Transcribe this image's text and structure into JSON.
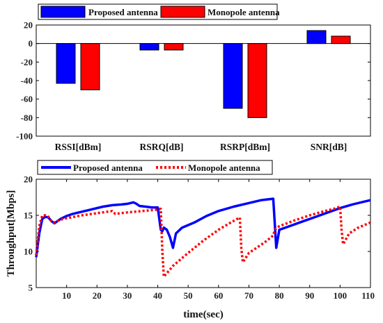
{
  "chart_data": [
    {
      "type": "bar",
      "title": "",
      "xlabel": "",
      "ylabel": "",
      "categories": [
        "RSSI[dBm]",
        "RSRQ[dB]",
        "RSRP[dBm]",
        "SNR[dB]"
      ],
      "series": [
        {
          "name": "Proposed antenna",
          "color": "#0000ff",
          "values": [
            -43,
            -7,
            -70,
            14
          ]
        },
        {
          "name": "Monopole antenna",
          "color": "#ff0000",
          "values": [
            -50,
            -7,
            -80,
            8
          ]
        }
      ],
      "ylim": [
        -100,
        20
      ],
      "yticks": [
        "20",
        "0",
        "-20",
        "-40",
        "-60",
        "-80",
        "-100"
      ],
      "legend": "top-left",
      "grid": false
    },
    {
      "type": "line",
      "title": "",
      "xlabel": "time(sec)",
      "ylabel": "Throughput[Mbps]",
      "xlim": [
        0,
        110
      ],
      "ylim": [
        5,
        20
      ],
      "xticks": [
        "10",
        "20",
        "30",
        "40",
        "50",
        "60",
        "70",
        "80",
        "90",
        "100",
        "110"
      ],
      "yticks": [
        "5",
        "10",
        "15",
        "20"
      ],
      "legend": "top",
      "grid": false,
      "series": [
        {
          "name": "Proposed antenna",
          "color": "#0000ff",
          "style": "solid",
          "x": [
            0,
            1,
            2,
            3,
            4,
            5,
            6,
            8,
            10,
            12,
            15,
            18,
            20,
            22,
            25,
            28,
            30,
            32,
            33,
            34,
            36,
            38,
            40,
            41,
            41.5,
            42,
            43,
            44,
            45,
            46,
            48,
            52,
            56,
            60,
            65,
            70,
            74,
            76,
            78,
            78.5,
            79,
            80,
            84,
            88,
            92,
            96,
            100,
            104,
            108,
            110
          ],
          "y": [
            9.2,
            12.5,
            14.5,
            14.8,
            14.7,
            14.2,
            13.9,
            14.5,
            14.9,
            15.2,
            15.5,
            15.8,
            16.0,
            16.2,
            16.4,
            16.5,
            16.6,
            16.8,
            16.6,
            16.3,
            16.2,
            16.1,
            16.1,
            13.0,
            12.8,
            13.3,
            13.0,
            12.0,
            10.5,
            12.5,
            13.3,
            14.0,
            14.9,
            15.6,
            16.2,
            16.7,
            17.1,
            17.2,
            17.3,
            14.0,
            10.5,
            13.0,
            13.6,
            14.2,
            14.8,
            15.4,
            16.0,
            16.5,
            16.9,
            17.1
          ]
        },
        {
          "name": "Monopole antenna",
          "color": "#ff0000",
          "style": "dotted",
          "x": [
            0,
            1,
            2,
            3,
            4,
            5,
            6,
            8,
            10,
            15,
            20,
            25,
            26,
            30,
            35,
            40,
            41,
            41.5,
            42,
            45,
            50,
            55,
            60,
            64,
            67,
            67.5,
            68,
            70,
            75,
            78,
            78.5,
            80,
            85,
            90,
            95,
            98,
            100,
            100.5,
            101,
            103,
            106,
            110
          ],
          "y": [
            9.5,
            13.5,
            15.0,
            15.0,
            14.8,
            14.2,
            14.0,
            14.4,
            14.6,
            15.0,
            15.3,
            15.6,
            15.2,
            15.4,
            15.6,
            15.8,
            15.9,
            10.0,
            6.5,
            8.0,
            9.8,
            11.5,
            13.0,
            14.0,
            14.7,
            10.5,
            8.5,
            9.8,
            11.2,
            12.2,
            13.0,
            13.5,
            14.3,
            15.0,
            15.6,
            15.9,
            16.2,
            13.0,
            11.0,
            12.5,
            13.3,
            14.0
          ]
        }
      ]
    }
  ]
}
